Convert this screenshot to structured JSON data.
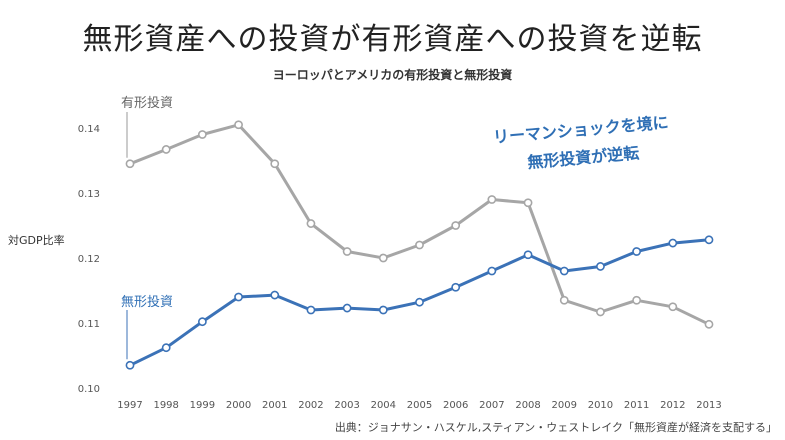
{
  "main_title": "無形資産への投資が有形資産への投資を逆転",
  "source": "出典：ジョナサン・ハスケル,スティアン・ウェストレイク「無形資産が経済を支配する」",
  "chart_data": {
    "type": "line",
    "title": "ヨーロッパとアメリカの有形投資と無形投資",
    "xlabel": "",
    "ylabel": "対GDP比率",
    "ylim": [
      0.1,
      0.14
    ],
    "yticks": [
      "0.10",
      "0.11",
      "0.12",
      "0.13",
      "0.14"
    ],
    "categories": [
      "1997",
      "1998",
      "1999",
      "2000",
      "2001",
      "2002",
      "2003",
      "2004",
      "2005",
      "2006",
      "2007",
      "2008",
      "2009",
      "2010",
      "2011",
      "2012",
      "2013"
    ],
    "series": [
      {
        "name": "有形投資",
        "color": "#a6a6a6",
        "values": [
          0.1345,
          0.1367,
          0.139,
          0.1405,
          0.1345,
          0.1253,
          0.121,
          0.12,
          0.122,
          0.125,
          0.129,
          0.1285,
          0.1135,
          0.1117,
          0.1135,
          0.1125,
          0.1098
        ]
      },
      {
        "name": "無形投資",
        "color": "#3b72b7",
        "values": [
          0.1035,
          0.1062,
          0.1102,
          0.114,
          0.1143,
          0.112,
          0.1123,
          0.112,
          0.1132,
          0.1155,
          0.118,
          0.1205,
          0.118,
          0.1187,
          0.121,
          0.1223,
          0.1228
        ]
      }
    ],
    "annotation": [
      "リーマンショックを境に",
      "無形投資が逆転"
    ]
  }
}
